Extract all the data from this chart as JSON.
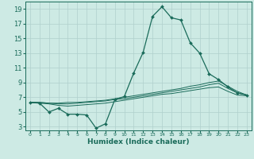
{
  "xlabel": "Humidex (Indice chaleur)",
  "bg_color": "#cdeae4",
  "grid_color": "#b0d0cc",
  "line_color": "#1a6b5a",
  "spine_color": "#1a6b5a",
  "xlim": [
    -0.5,
    23.5
  ],
  "ylim": [
    2.5,
    20.0
  ],
  "xticks": [
    0,
    1,
    2,
    3,
    4,
    5,
    6,
    7,
    8,
    9,
    10,
    11,
    12,
    13,
    14,
    15,
    16,
    17,
    18,
    19,
    20,
    21,
    22,
    23
  ],
  "yticks": [
    3,
    5,
    7,
    9,
    11,
    13,
    15,
    17,
    19
  ],
  "series": [
    {
      "x": [
        0,
        1,
        2,
        3,
        4,
        5,
        6,
        7,
        8,
        9,
        10,
        11,
        12,
        13,
        14,
        15,
        16,
        17,
        18,
        19,
        20,
        21,
        22,
        23
      ],
      "y": [
        6.3,
        6.2,
        5.0,
        5.5,
        4.7,
        4.7,
        4.6,
        2.8,
        3.4,
        6.7,
        7.1,
        10.3,
        13.1,
        18.0,
        19.3,
        17.8,
        17.5,
        14.4,
        13.0,
        10.2,
        9.4,
        8.4,
        7.6,
        7.3
      ],
      "marker": true
    },
    {
      "x": [
        0,
        1,
        2,
        3,
        4,
        5,
        6,
        7,
        8,
        9,
        10,
        11,
        12,
        13,
        14,
        15,
        16,
        17,
        18,
        19,
        20,
        21,
        22,
        23
      ],
      "y": [
        6.3,
        6.3,
        6.2,
        6.2,
        6.3,
        6.3,
        6.4,
        6.5,
        6.6,
        6.8,
        7.0,
        7.2,
        7.4,
        7.6,
        7.8,
        8.0,
        8.2,
        8.5,
        8.7,
        9.0,
        9.2,
        8.5,
        7.8,
        7.3
      ],
      "marker": false
    },
    {
      "x": [
        0,
        1,
        2,
        3,
        4,
        5,
        6,
        7,
        8,
        9,
        10,
        11,
        12,
        13,
        14,
        15,
        16,
        17,
        18,
        19,
        20,
        21,
        22,
        23
      ],
      "y": [
        6.3,
        6.3,
        6.2,
        6.1,
        6.1,
        6.2,
        6.3,
        6.4,
        6.5,
        6.7,
        6.8,
        7.0,
        7.2,
        7.4,
        7.6,
        7.8,
        8.0,
        8.2,
        8.4,
        8.7,
        8.9,
        8.2,
        7.6,
        7.3
      ],
      "marker": false
    },
    {
      "x": [
        0,
        1,
        2,
        3,
        4,
        5,
        6,
        7,
        8,
        9,
        10,
        11,
        12,
        13,
        14,
        15,
        16,
        17,
        18,
        19,
        20,
        21,
        22,
        23
      ],
      "y": [
        6.3,
        6.2,
        6.1,
        5.9,
        5.8,
        5.9,
        6.0,
        6.1,
        6.2,
        6.4,
        6.6,
        6.8,
        7.0,
        7.2,
        7.4,
        7.5,
        7.7,
        7.9,
        8.1,
        8.3,
        8.4,
        7.8,
        7.3,
        7.2
      ],
      "marker": false
    }
  ]
}
